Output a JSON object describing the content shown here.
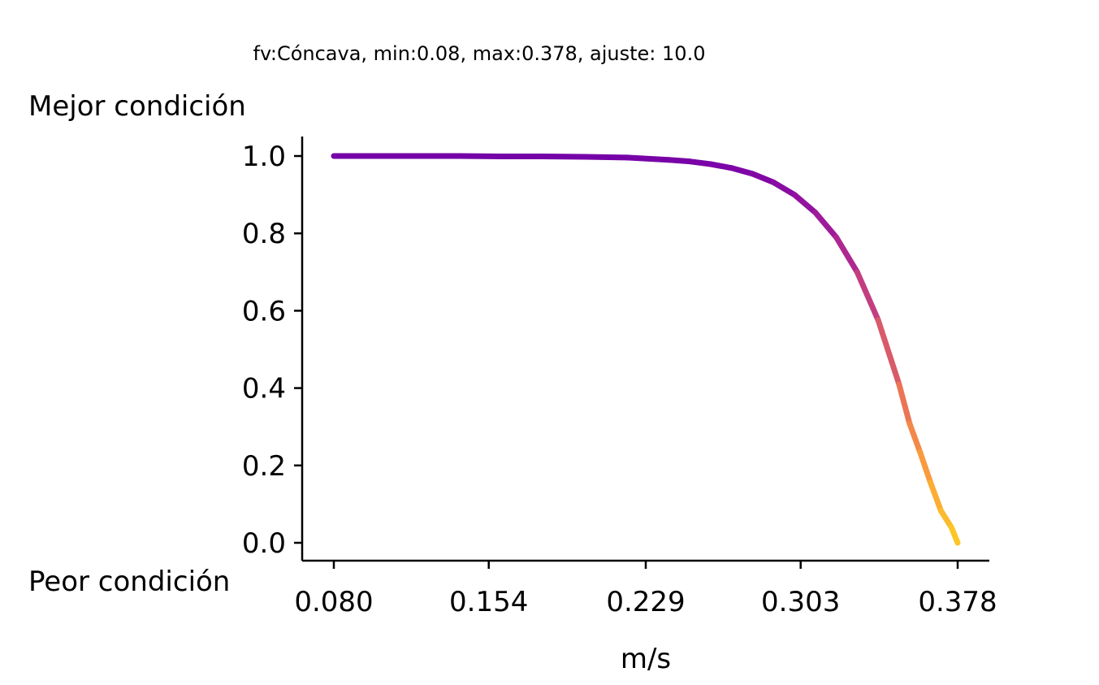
{
  "chart_data": {
    "type": "line",
    "title": "fv:Cóncava, min:0.08, max:0.378, ajuste: 10.0",
    "xlabel": "m/s",
    "ylabel_top": "Mejor condición",
    "ylabel_bottom": "Peor condición",
    "x_ticks": [
      "0.080",
      "0.154",
      "0.229",
      "0.303",
      "0.378"
    ],
    "y_ticks": [
      "0.0",
      "0.2",
      "0.4",
      "0.6",
      "0.8",
      "1.0"
    ],
    "xlim": [
      0.08,
      0.378
    ],
    "ylim": [
      0.0,
      1.0
    ],
    "grid": false,
    "colormap": "plasma",
    "series": [
      {
        "x": [
          0.08,
          0.1,
          0.12,
          0.14,
          0.16,
          0.18,
          0.2,
          0.22,
          0.24,
          0.25,
          0.26,
          0.27,
          0.28,
          0.29,
          0.3,
          0.31,
          0.32,
          0.33,
          0.34,
          0.35,
          0.355,
          0.36,
          0.365,
          0.37,
          0.375,
          0.378
        ],
        "y": [
          1.0,
          1.0,
          1.0,
          1.0,
          0.999,
          0.999,
          0.998,
          0.996,
          0.99,
          0.986,
          0.979,
          0.969,
          0.954,
          0.932,
          0.9,
          0.854,
          0.79,
          0.7,
          0.576,
          0.41,
          0.309,
          0.235,
          0.156,
          0.083,
          0.04,
          0.0
        ]
      }
    ]
  }
}
